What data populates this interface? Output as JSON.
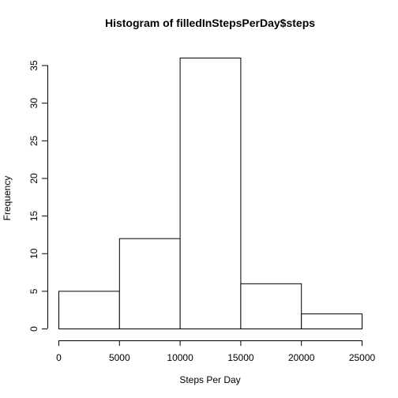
{
  "chart_data": {
    "type": "bar",
    "title": "Histogram of filledInStepsPerDay$steps",
    "xlabel": "Steps Per Day",
    "ylabel": "Frequency",
    "bins": [
      {
        "from": 0,
        "to": 5000,
        "value": 5
      },
      {
        "from": 5000,
        "to": 10000,
        "value": 12
      },
      {
        "from": 10000,
        "to": 15000,
        "value": 36
      },
      {
        "from": 15000,
        "to": 20000,
        "value": 6
      },
      {
        "from": 20000,
        "to": 25000,
        "value": 2
      }
    ],
    "xlim": [
      0,
      25000
    ],
    "ylim": [
      0,
      36
    ],
    "x_ticks": [
      0,
      5000,
      10000,
      15000,
      20000,
      25000
    ],
    "y_ticks": [
      0,
      5,
      10,
      15,
      20,
      25,
      30,
      35
    ],
    "grid": false,
    "colors": {
      "bar_fill": "#ffffff",
      "bar_stroke": "#000000",
      "axis": "#000000"
    }
  }
}
